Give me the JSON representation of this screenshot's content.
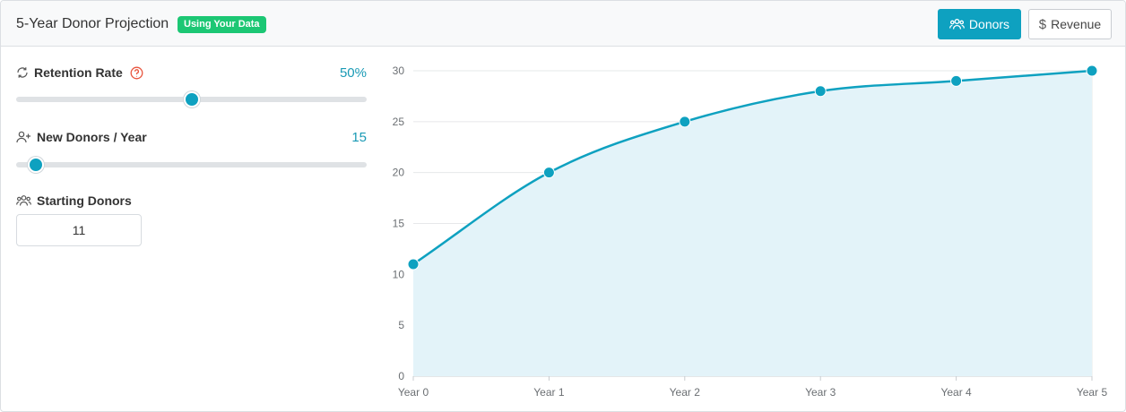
{
  "header": {
    "title": "5-Year Donor Projection",
    "badge": "Using Your Data",
    "buttons": {
      "donors": "Donors",
      "revenue": "Revenue"
    }
  },
  "controls": {
    "retention": {
      "label": "Retention Rate",
      "value_label": "50%",
      "value": 50,
      "min": 0,
      "max": 100
    },
    "new_donors": {
      "label": "New Donors / Year",
      "value_label": "15",
      "value": 15,
      "min": 10,
      "max": 100
    },
    "starting": {
      "label": "Starting Donors",
      "value": "11"
    }
  },
  "colors": {
    "accent": "#0ea1c0",
    "badge": "#1cc774",
    "help": "#e8553e",
    "area": "#e3f3f9"
  },
  "icons": {
    "retention": "refresh-icon",
    "help": "help-circle-icon",
    "new_donors": "user-plus-icon",
    "starting": "users-icon",
    "donors_button": "users-icon",
    "revenue_button": "dollar-icon"
  },
  "chart_data": {
    "type": "area",
    "categories": [
      "Year 0",
      "Year 1",
      "Year 2",
      "Year 3",
      "Year 4",
      "Year 5"
    ],
    "values": [
      11,
      20,
      25,
      28,
      29,
      30
    ],
    "yticks": [
      "0",
      "5",
      "10",
      "15",
      "20",
      "25",
      "30"
    ],
    "ylim": [
      0,
      30
    ],
    "grid": true,
    "legend": "none"
  }
}
